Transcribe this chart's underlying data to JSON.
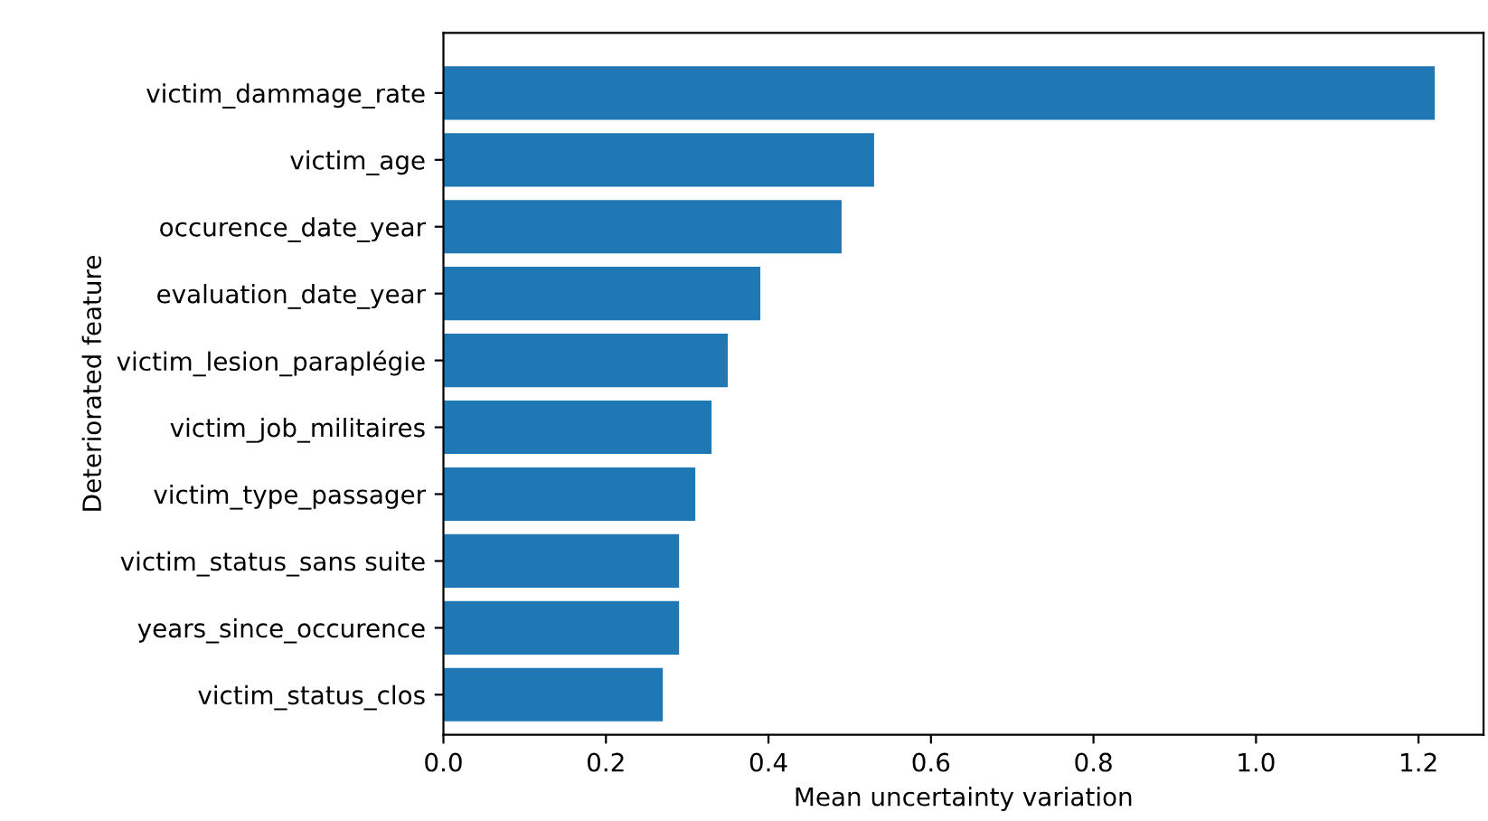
{
  "chart_data": {
    "type": "bar",
    "orientation": "horizontal",
    "xlabel": "Mean uncertainty variation",
    "ylabel": "Deteriorated feature",
    "categories": [
      "victim_dammage_rate",
      "victim_age",
      "occurence_date_year",
      "evaluation_date_year",
      "victim_lesion_paraplégie",
      "victim_job_militaires",
      "victim_type_passager",
      "victim_status_sans suite",
      "years_since_occurence",
      "victim_status_clos"
    ],
    "values": [
      1.22,
      0.53,
      0.49,
      0.39,
      0.35,
      0.33,
      0.31,
      0.29,
      0.29,
      0.27
    ],
    "color": "#1f77b4",
    "xlim": [
      0,
      1.28
    ],
    "xticks": [
      {
        "value": 0,
        "label": "0.0"
      },
      0.2,
      0.4,
      0.6,
      0.8,
      {
        "value": 1,
        "label": "1.0"
      },
      1.2
    ]
  }
}
